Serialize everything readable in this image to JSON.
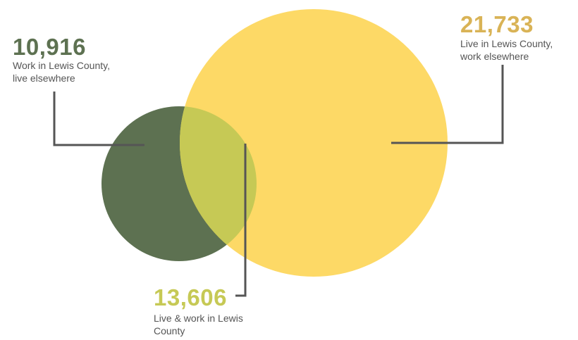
{
  "colors": {
    "work_elsewhere": "#5D7151",
    "live_elsewhere": "#FDD966",
    "overlap": "#C6C955",
    "right_number": "#D9B356",
    "leader_line": "#555555"
  },
  "labels": {
    "work_in_county": {
      "value": "10,916",
      "text_line1": "Work in Lewis County,",
      "text_line2": "live elsewhere"
    },
    "live_in_county": {
      "value": "21,733",
      "text_line1": "Live in Lewis County,",
      "text_line2": "work elsewhere"
    },
    "live_and_work": {
      "value": "13,606",
      "text_line1": "Live & work in Lewis",
      "text_line2": "County"
    }
  }
}
